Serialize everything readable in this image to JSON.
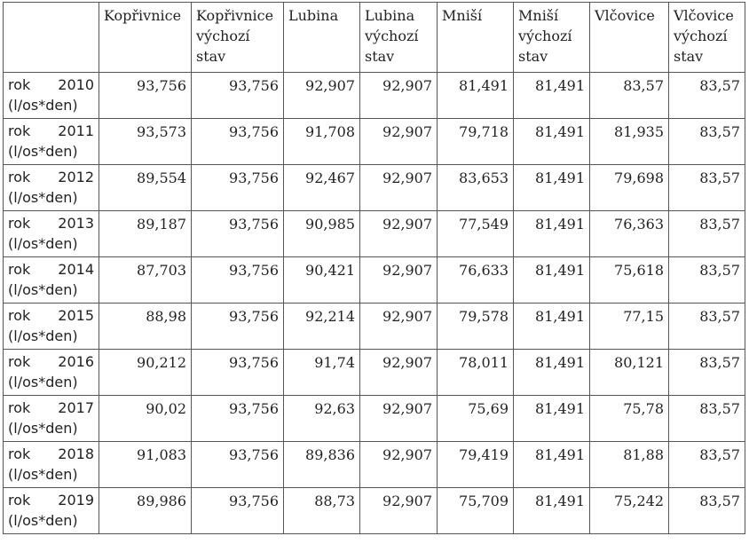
{
  "table": {
    "corner": "",
    "columns": [
      "Kopřivnice",
      "Kopřivnice výchozí stav",
      "Lubina",
      "Lubina výchozí stav",
      "Mniší",
      "Mniší výchozí stav",
      "Vlčovice",
      "Vlčovice výchozí stav"
    ],
    "rows": [
      {
        "prefix": "rok",
        "year": "2010",
        "unit": "(l/os*den)",
        "values": [
          "93,756",
          "93,756",
          "92,907",
          "92,907",
          "81,491",
          "81,491",
          "83,57",
          "83,57"
        ]
      },
      {
        "prefix": "rok",
        "year": "2011",
        "unit": "(l/os*den)",
        "values": [
          "93,573",
          "93,756",
          "91,708",
          "92,907",
          "79,718",
          "81,491",
          "81,935",
          "83,57"
        ]
      },
      {
        "prefix": "rok",
        "year": "2012",
        "unit": "(l/os*den)",
        "values": [
          "89,554",
          "93,756",
          "92,467",
          "92,907",
          "83,653",
          "81,491",
          "79,698",
          "83,57"
        ]
      },
      {
        "prefix": "rok",
        "year": "2013",
        "unit": "(l/os*den)",
        "values": [
          "89,187",
          "93,756",
          "90,985",
          "92,907",
          "77,549",
          "81,491",
          "76,363",
          "83,57"
        ]
      },
      {
        "prefix": "rok",
        "year": "2014",
        "unit": "(l/os*den)",
        "values": [
          "87,703",
          "93,756",
          "90,421",
          "92,907",
          "76,633",
          "81,491",
          "75,618",
          "83,57"
        ]
      },
      {
        "prefix": "rok",
        "year": "2015",
        "unit": "(l/os*den)",
        "values": [
          "88,98",
          "93,756",
          "92,214",
          "92,907",
          "79,578",
          "81,491",
          "77,15",
          "83,57"
        ]
      },
      {
        "prefix": "rok",
        "year": "2016",
        "unit": "(l/os*den)",
        "values": [
          "90,212",
          "93,756",
          "91,74",
          "92,907",
          "78,011",
          "81,491",
          "80,121",
          "83,57"
        ]
      },
      {
        "prefix": "rok",
        "year": "2017",
        "unit": "(l/os*den)",
        "values": [
          "90,02",
          "93,756",
          "92,63",
          "92,907",
          "75,69",
          "81,491",
          "75,78",
          "83,57"
        ]
      },
      {
        "prefix": "rok",
        "year": "2018",
        "unit": "(l/os*den)",
        "values": [
          "91,083",
          "93,756",
          "89,836",
          "92,907",
          "79,419",
          "81,491",
          "81,88",
          "83,57"
        ]
      },
      {
        "prefix": "rok",
        "year": "2019",
        "unit": "(l/os*den)",
        "values": [
          "89,986",
          "93,756",
          "88,73",
          "92,907",
          "75,709",
          "81,491",
          "75,242",
          "83,57"
        ]
      }
    ]
  }
}
